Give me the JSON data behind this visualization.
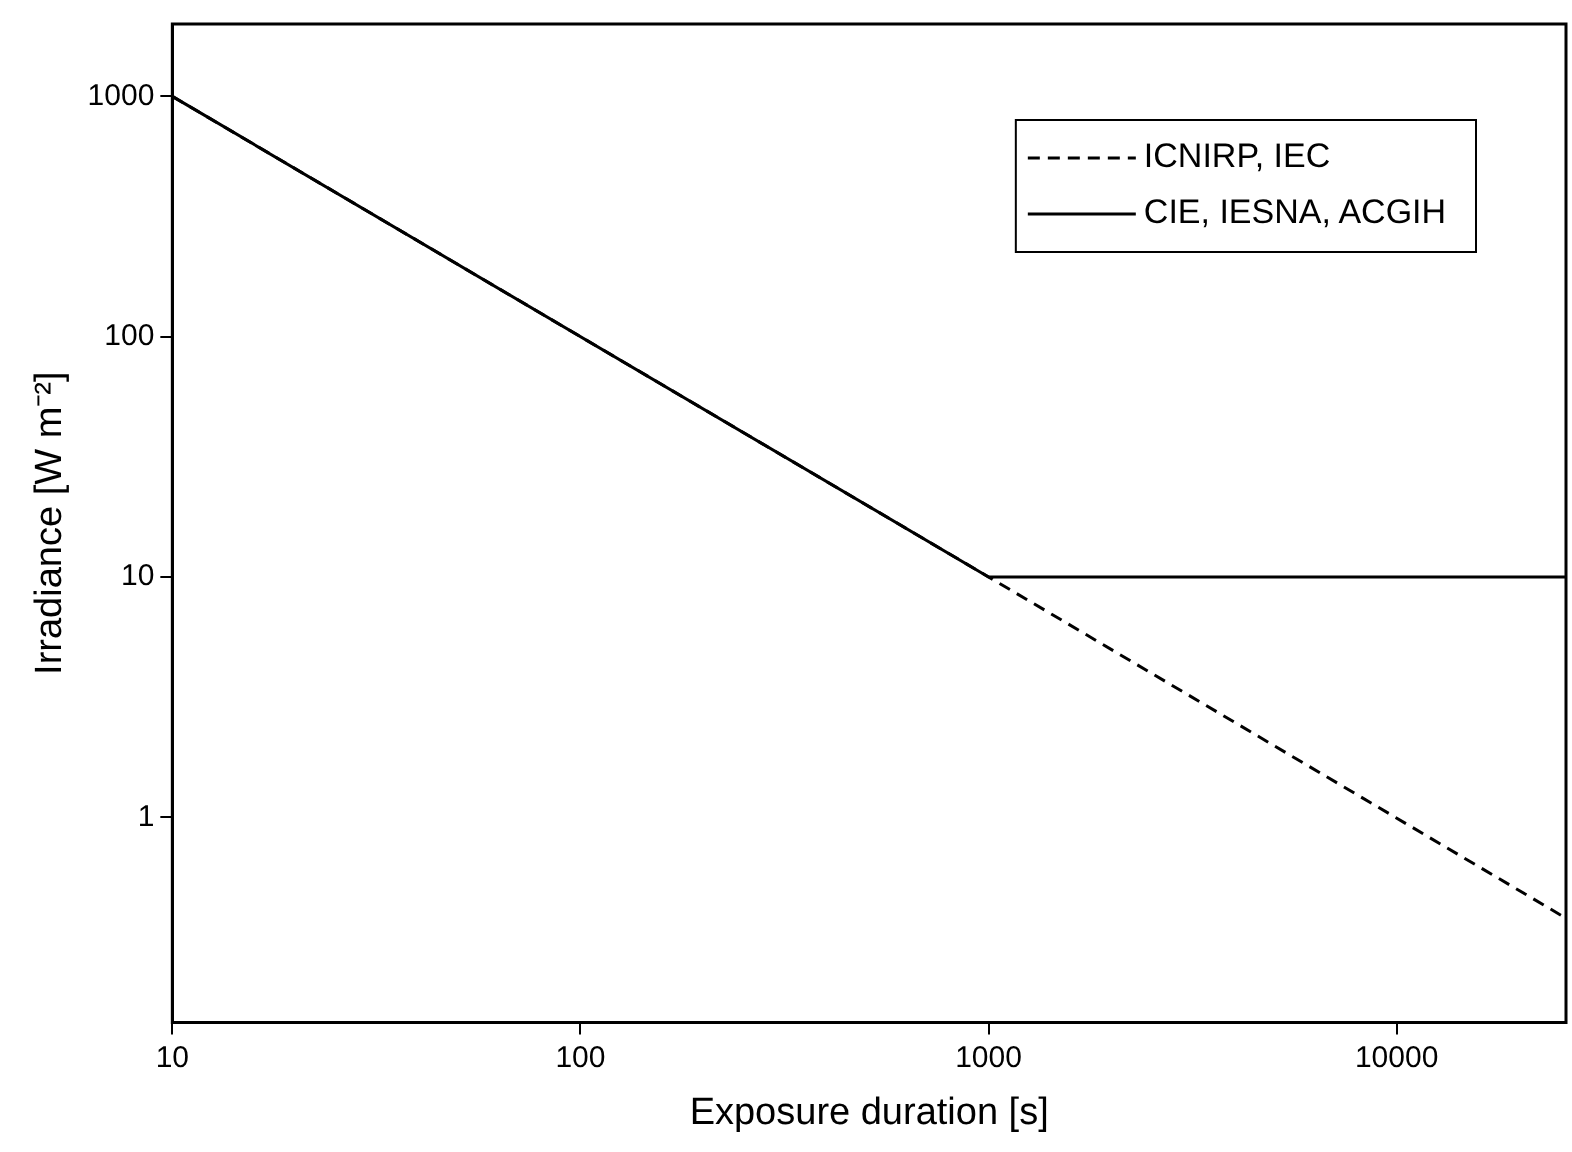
{
  "chart_data": {
    "type": "line",
    "xlabel": "Exposure duration [s]",
    "ylabel": "Irradiance [W m⁻²]",
    "log": "xy",
    "xlim": [
      10,
      26000
    ],
    "ylim": [
      0.14,
      2000
    ],
    "xticks": [
      10,
      100,
      1000,
      10000
    ],
    "yticks": [
      1,
      10,
      100,
      1000
    ],
    "grid": false,
    "legend": "top right",
    "marker": "none",
    "series": [
      {
        "name": "ICNIRP, IEC",
        "color": "#000000",
        "line_style": "dashed",
        "x": [
          10,
          1000,
          26000
        ],
        "values": [
          1000,
          10,
          0.38
        ]
      },
      {
        "name": "CIE, IESNA, ACGIH",
        "color": "#000000",
        "line_style": "solid",
        "x": [
          10,
          1000,
          26000
        ],
        "values": [
          1000,
          10,
          10
        ]
      }
    ]
  }
}
